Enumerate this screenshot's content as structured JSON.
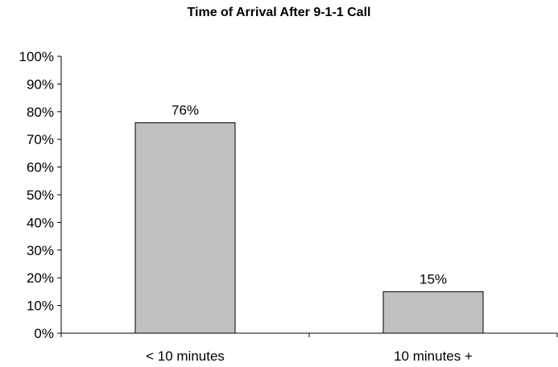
{
  "chart_data": {
    "type": "bar",
    "title": "Time of Arrival After 9-1-1 Call",
    "xlabel": "",
    "ylabel": "",
    "categories": [
      "< 10 minutes",
      "10 minutes +"
    ],
    "values": [
      76,
      15
    ],
    "value_labels": [
      "76%",
      "15%"
    ],
    "ylim": [
      0,
      100
    ],
    "y_ticks": [
      0,
      10,
      20,
      30,
      40,
      50,
      60,
      70,
      80,
      90,
      100
    ],
    "y_tick_labels": [
      "0%",
      "10%",
      "20%",
      "30%",
      "40%",
      "50%",
      "60%",
      "70%",
      "80%",
      "90%",
      "100%"
    ],
    "grid": false,
    "legend": "none",
    "bar_color": "#c0c0c0",
    "bar_edge_color": "#000000"
  }
}
